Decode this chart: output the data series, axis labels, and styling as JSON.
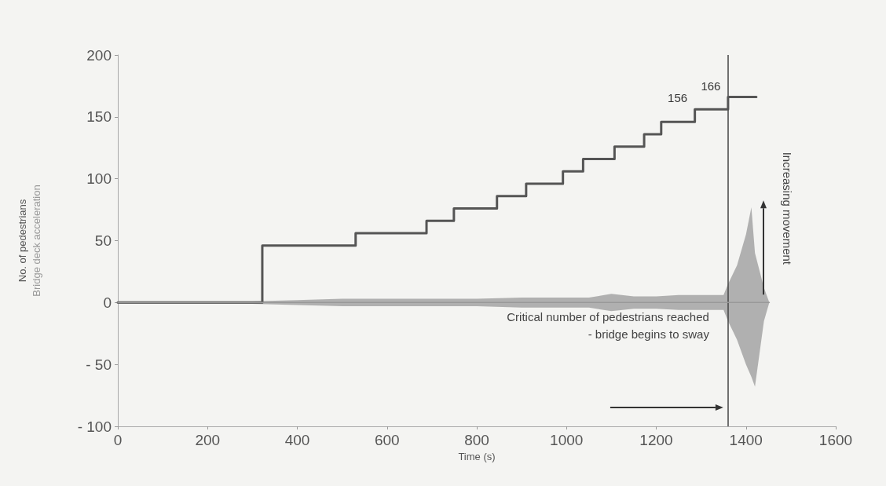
{
  "chart_data": {
    "type": "step",
    "xlabel": "Time (s)",
    "ylabel": "No. of pedestrians",
    "xlim": [
      0,
      1600
    ],
    "xticks": [
      0,
      200,
      400,
      600,
      800,
      1000,
      1200,
      1400,
      1600
    ],
    "ylim": [
      -100,
      200
    ],
    "yticks": [
      {
        "value": -100,
        "label": "- 100"
      },
      {
        "value": -50,
        "label": "- 50"
      },
      0,
      50,
      100,
      150,
      200
    ],
    "grid": false,
    "legend": false,
    "marker": "none",
    "line_style": "solid",
    "series": [
      {
        "color": "#555555",
        "x": [
          0,
          322,
          530,
          688,
          749,
          845,
          910,
          992,
          1037,
          1107,
          1173,
          1211,
          1286,
          1360,
          1423
        ],
        "values": [
          0,
          46,
          56,
          66,
          76,
          86,
          96,
          106,
          116,
          126,
          136,
          146,
          156,
          166,
          166
        ],
        "value_labels": [
          null,
          null,
          null,
          null,
          null,
          null,
          null,
          null,
          null,
          null,
          null,
          null,
          "156",
          "166",
          null
        ]
      },
      {
        "type": "line",
        "name": "Bridge deck acceleration",
        "color": "#999999",
        "x": [
          0,
          100,
          200,
          300,
          400,
          500,
          600,
          700,
          800,
          900,
          1000,
          1050,
          1100,
          1150,
          1200,
          1250,
          1300,
          1350,
          1360,
          1380,
          1400,
          1412,
          1420,
          1440,
          1452
        ],
        "values": [
          0,
          0,
          0,
          0,
          0,
          0,
          0,
          0,
          0,
          0,
          0,
          0,
          0,
          0,
          0,
          0,
          0,
          0,
          0,
          0,
          0,
          0,
          0,
          0,
          0
        ],
        "upper": [
          1,
          1,
          1,
          1,
          2,
          3,
          3,
          3,
          3,
          4,
          4,
          4,
          7,
          5,
          5,
          6,
          6,
          6,
          15,
          30,
          55,
          77,
          40,
          12,
          0
        ],
        "lower": [
          -1,
          -1,
          -1,
          -1,
          -2,
          -3,
          -3,
          -3,
          -3,
          -4,
          -4,
          -4,
          -7,
          -5,
          -5,
          -6,
          -6,
          -6,
          -15,
          -30,
          -50,
          -60,
          -68,
          -15,
          0
        ]
      }
    ],
    "ref_lines": [
      {
        "axis": "x",
        "value": 1360,
        "label": "Critical number of pedestrians reached\n- bridge begins to sway",
        "color": "#444444"
      }
    ],
    "annotations": [
      "Increasing movement"
    ]
  }
}
